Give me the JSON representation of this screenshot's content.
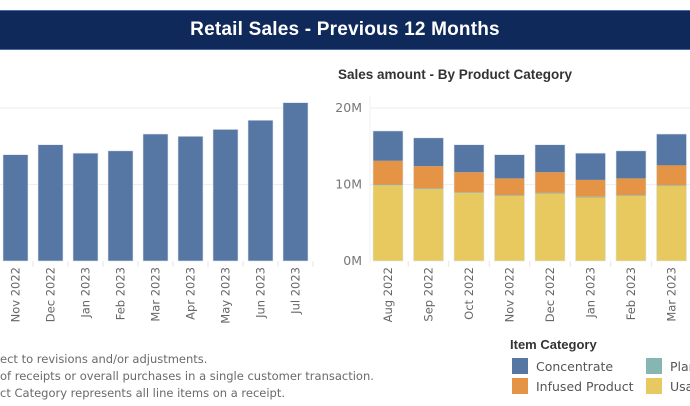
{
  "banner": {
    "title": "Retail Sales - Previous 12 Months"
  },
  "colors": {
    "banner_bg": "#0f2a5a",
    "concentrate": "#5677a4",
    "infused": "#e49444",
    "plant": "#85b6b2",
    "usable": "#e7c95f",
    "total": "#5677a4"
  },
  "chart_data": [
    {
      "type": "bar",
      "title": "",
      "xlabel": "",
      "ylabel": "",
      "ylim": [
        0,
        20
      ],
      "y_units": "M",
      "grid": true,
      "categories": [
        "Nov 2022",
        "Dec 2022",
        "Jan 2023",
        "Feb 2023",
        "Mar 2023",
        "Apr 2023",
        "May 2023",
        "Jun 2023",
        "Jul 2023"
      ],
      "values": [
        13.9,
        15.2,
        14.1,
        14.4,
        16.6,
        16.3,
        17.2,
        18.4,
        20.7
      ]
    },
    {
      "type": "bar",
      "stacked": true,
      "title": "Sales amount - By Product Category",
      "xlabel": "",
      "ylabel": "",
      "ylim": [
        0,
        20
      ],
      "yticks": [
        "0M",
        "10M",
        "20M"
      ],
      "ytick_values": [
        0,
        10,
        20
      ],
      "grid": true,
      "categories": [
        "Aug 2022",
        "Sep 2022",
        "Oct 2022",
        "Nov 2022",
        "Dec 2022",
        "Jan 2023",
        "Feb 2023",
        "Mar 2023"
      ],
      "series": [
        {
          "name": "Usable",
          "key": "usable",
          "values": [
            9.9,
            9.4,
            8.9,
            8.5,
            8.8,
            8.3,
            8.5,
            9.8
          ]
        },
        {
          "name": "Plant",
          "key": "plant",
          "values": [
            0.1,
            0.1,
            0.1,
            0.1,
            0.1,
            0.1,
            0.1,
            0.1
          ]
        },
        {
          "name": "Infused Product",
          "key": "infused",
          "values": [
            3.1,
            2.9,
            2.6,
            2.2,
            2.7,
            2.2,
            2.2,
            2.6
          ]
        },
        {
          "name": "Concentrate",
          "key": "concentrate",
          "values": [
            3.9,
            3.7,
            3.6,
            3.1,
            3.6,
            3.5,
            3.6,
            4.1
          ]
        }
      ],
      "legend": {
        "title": "Item Category",
        "placement": "bottom-right",
        "entries": [
          {
            "label": "Concentrate",
            "key": "concentrate"
          },
          {
            "label": "Plar",
            "key": "plant"
          },
          {
            "label": "Infused Product",
            "key": "infused"
          },
          {
            "label": "Usal",
            "key": "usable"
          }
        ]
      }
    }
  ],
  "footer": {
    "lines": [
      "ect to revisions and/or adjustments.",
      "of receipts or overall purchases in a single customer transaction.",
      "ct Category  represents all line items on a receipt."
    ]
  }
}
